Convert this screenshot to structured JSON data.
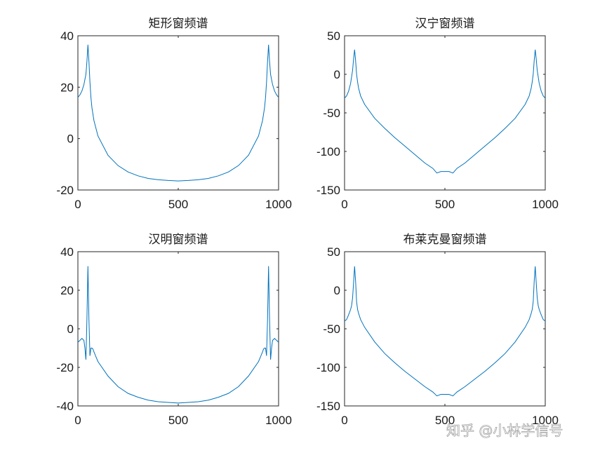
{
  "watermark": "知乎 @小林学信号",
  "colors": {
    "line": "#0072bd",
    "axes": "#262626",
    "background": "#ffffff"
  },
  "chart_data": [
    {
      "type": "line",
      "title": "矩形窗频谱",
      "xlim": [
        0,
        1000
      ],
      "ylim": [
        -20,
        40
      ],
      "xticks": [
        0,
        500,
        1000
      ],
      "yticks": [
        -20,
        0,
        20,
        40
      ],
      "series": [
        {
          "x": [
            0,
            10,
            20,
            30,
            40,
            45,
            50,
            55,
            60,
            65,
            70,
            80,
            100,
            150,
            200,
            250,
            300,
            350,
            400,
            450,
            500,
            550,
            600,
            650,
            700,
            750,
            800,
            850,
            900,
            920,
            930,
            935,
            940,
            945,
            950,
            955,
            960,
            970,
            980,
            990,
            1000
          ],
          "y": [
            16,
            17,
            18.5,
            21,
            25,
            30,
            36.5,
            30,
            22,
            16,
            12,
            7,
            1,
            -6.5,
            -10.5,
            -13,
            -14.5,
            -15.5,
            -16,
            -16.3,
            -16.5,
            -16.3,
            -16,
            -15.5,
            -14.5,
            -13,
            -10.5,
            -6.5,
            1,
            7,
            12,
            16,
            22,
            30,
            36.5,
            30,
            25,
            21,
            18.5,
            17,
            16
          ]
        }
      ]
    },
    {
      "type": "line",
      "title": "汉宁窗频谱",
      "xlim": [
        0,
        1000
      ],
      "ylim": [
        -150,
        50
      ],
      "xticks": [
        0,
        500,
        1000
      ],
      "yticks": [
        -150,
        -100,
        -50,
        0,
        50
      ],
      "series": [
        {
          "x": [
            0,
            10,
            20,
            30,
            40,
            45,
            50,
            55,
            60,
            65,
            70,
            80,
            100,
            150,
            200,
            250,
            300,
            350,
            400,
            440,
            460,
            480,
            500,
            520,
            540,
            560,
            600,
            650,
            700,
            750,
            800,
            850,
            900,
            920,
            930,
            935,
            940,
            945,
            950,
            955,
            960,
            970,
            980,
            990,
            1000
          ],
          "y": [
            -31,
            -28,
            -22,
            -12,
            5,
            20,
            32,
            18,
            0,
            -10,
            -18,
            -28,
            -39,
            -57,
            -70,
            -82,
            -93,
            -104,
            -115,
            -122,
            -128,
            -126,
            -126,
            -126,
            -128,
            -122,
            -115,
            -104,
            -93,
            -82,
            -70,
            -57,
            -39,
            -28,
            -18,
            -10,
            0,
            18,
            32,
            20,
            5,
            -12,
            -22,
            -28,
            -31
          ]
        }
      ]
    },
    {
      "type": "line",
      "title": "汉明窗频谱",
      "xlim": [
        0,
        1000
      ],
      "ylim": [
        -40,
        40
      ],
      "xticks": [
        0,
        500,
        1000
      ],
      "yticks": [
        -40,
        -20,
        0,
        20,
        40
      ],
      "series": [
        {
          "x": [
            0,
            10,
            20,
            30,
            35,
            40,
            45,
            50,
            55,
            60,
            65,
            70,
            75,
            80,
            90,
            100,
            150,
            200,
            250,
            300,
            350,
            400,
            450,
            500,
            550,
            600,
            650,
            700,
            750,
            800,
            850,
            900,
            910,
            920,
            925,
            930,
            935,
            940,
            945,
            950,
            955,
            960,
            965,
            970,
            980,
            990,
            1000
          ],
          "y": [
            -7,
            -6,
            -5,
            -6,
            -10,
            -16,
            5,
            32.5,
            5,
            -14,
            -10,
            -10,
            -10.5,
            -12,
            -14.5,
            -17,
            -24.5,
            -30,
            -33.5,
            -35.5,
            -37,
            -37.8,
            -38.2,
            -38.5,
            -38.2,
            -37.8,
            -37,
            -35.5,
            -33.5,
            -30,
            -24.5,
            -17,
            -14.5,
            -12,
            -10.5,
            -10,
            -10,
            -14,
            5,
            32.5,
            5,
            -16,
            -10,
            -6,
            -5,
            -6,
            -7
          ]
        }
      ]
    },
    {
      "type": "line",
      "title": "布莱克曼窗频谱",
      "xlim": [
        0,
        1000
      ],
      "ylim": [
        -150,
        50
      ],
      "xticks": [
        0,
        500,
        1000
      ],
      "yticks": [
        -150,
        -100,
        -50,
        0,
        50
      ],
      "series": [
        {
          "x": [
            0,
            10,
            20,
            30,
            35,
            40,
            45,
            50,
            55,
            60,
            65,
            70,
            80,
            100,
            150,
            200,
            250,
            300,
            350,
            400,
            440,
            460,
            480,
            500,
            520,
            540,
            560,
            600,
            650,
            700,
            750,
            800,
            850,
            900,
            920,
            930,
            935,
            940,
            945,
            950,
            955,
            960,
            965,
            970,
            980,
            990,
            1000
          ],
          "y": [
            -40,
            -38,
            -32,
            -25,
            -20,
            -10,
            10,
            31,
            12,
            -15,
            -25,
            -30,
            -38,
            -48,
            -67,
            -82,
            -94,
            -105,
            -115,
            -125,
            -132,
            -137,
            -135,
            -135,
            -135,
            -137,
            -132,
            -125,
            -115,
            -105,
            -94,
            -82,
            -67,
            -48,
            -38,
            -30,
            -25,
            -15,
            12,
            31,
            10,
            -10,
            -20,
            -25,
            -32,
            -38,
            -40
          ]
        }
      ]
    }
  ]
}
